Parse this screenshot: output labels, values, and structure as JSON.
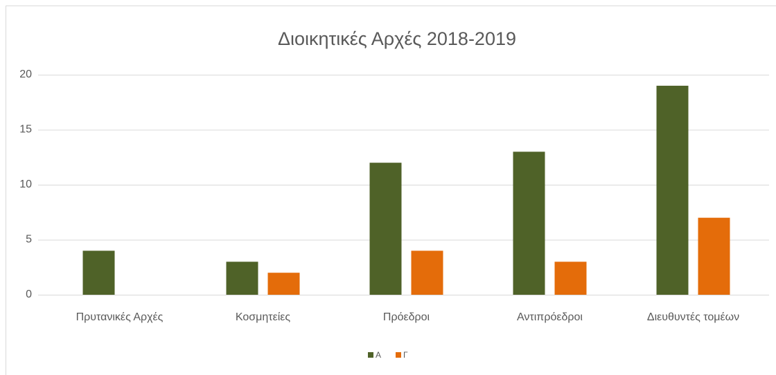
{
  "chart_data": {
    "type": "bar",
    "title": "Διοικητικές Αρχές 2018-2019",
    "categories": [
      "Πρυτανικές Αρχές",
      "Κοσμητείες",
      "Πρόεδροι",
      "Αντιπρόεδροι",
      "Διευθυντές τομέων"
    ],
    "series": [
      {
        "name": "Α",
        "color": "#4f6228",
        "values": [
          4,
          3,
          12,
          13,
          19
        ]
      },
      {
        "name": "Γ",
        "color": "#e46c0a",
        "values": [
          0,
          2,
          4,
          3,
          7
        ]
      }
    ],
    "ylim": [
      0,
      20
    ],
    "yticks": [
      0,
      5,
      10,
      15,
      20
    ],
    "grid": true,
    "legend": "bottom"
  }
}
